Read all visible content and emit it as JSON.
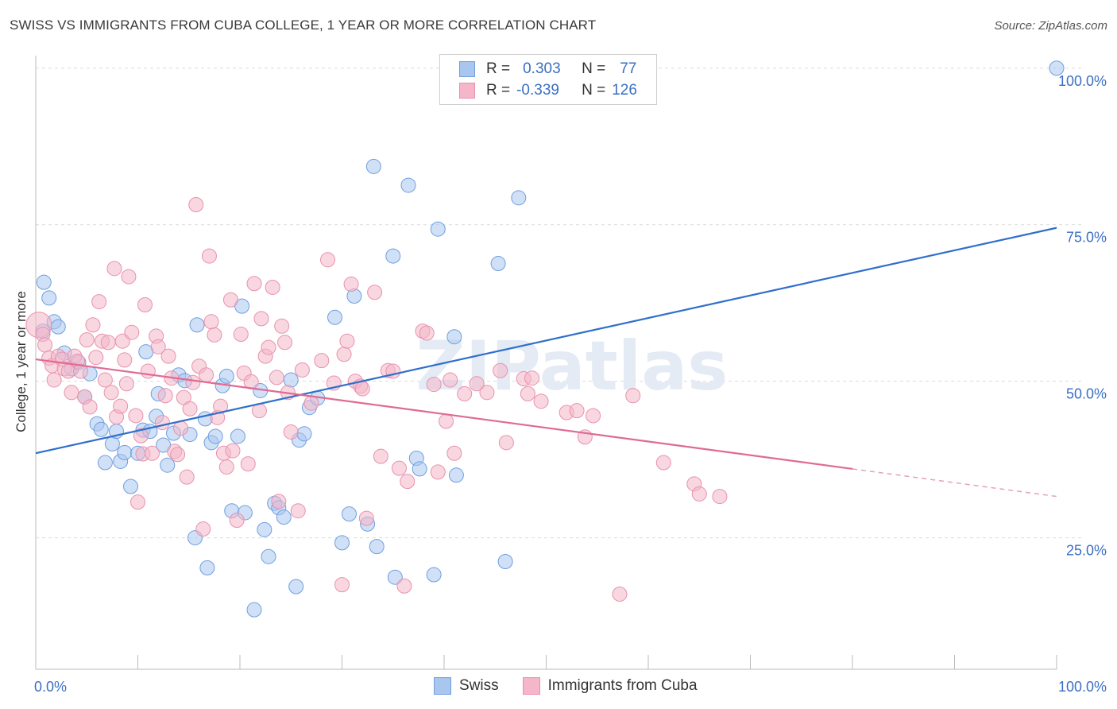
{
  "title": "SWISS VS IMMIGRANTS FROM CUBA COLLEGE, 1 YEAR OR MORE CORRELATION CHART",
  "source": "Source: ZipAtlas.com",
  "watermark": "ZIPatlas",
  "legend_top": {
    "rows": [
      {
        "r_label": "R =",
        "r_value": "0.303",
        "n_label": "N =",
        "n_value": "77",
        "color": "#a9c6ee"
      },
      {
        "r_label": "R =",
        "r_value": "-0.339",
        "n_label": "N =",
        "n_value": "126",
        "color": "#f4b6c8"
      }
    ]
  },
  "chart_data": {
    "type": "scatter",
    "title": "SWISS VS IMMIGRANTS FROM CUBA COLLEGE, 1 YEAR OR MORE CORRELATION CHART",
    "xlabel": "",
    "ylabel": "College, 1 year or more",
    "xlim": [
      0,
      100
    ],
    "ylim": [
      4,
      102
    ],
    "x_tick_labels": {
      "left": "0.0%",
      "right": "100.0%"
    },
    "y_ticks": [
      25,
      50,
      75,
      100
    ],
    "y_tick_labels": [
      "25.0%",
      "50.0%",
      "75.0%",
      "100.0%"
    ],
    "grid": true,
    "legend_position": "bottom-center",
    "series": [
      {
        "name": "Swiss",
        "color": "#a9c6ee",
        "stroke": "#6f9fe0",
        "trend": {
          "x": [
            0,
            100
          ],
          "y": [
            38.5,
            74.5
          ],
          "color": "#2f6fcc"
        },
        "points": [
          [
            0.7,
            58
          ],
          [
            0.8,
            65.8
          ],
          [
            1.3,
            63.3
          ],
          [
            1.8,
            59.5
          ],
          [
            2.2,
            58.7
          ],
          [
            2.8,
            54.5
          ],
          [
            3.5,
            52
          ],
          [
            4.2,
            53
          ],
          [
            4.8,
            47.5
          ],
          [
            5.3,
            51.2
          ],
          [
            6,
            43.2
          ],
          [
            6.4,
            42.3
          ],
          [
            6.8,
            37
          ],
          [
            7.5,
            40
          ],
          [
            7.9,
            42
          ],
          [
            8.3,
            37.2
          ],
          [
            8.7,
            38.6
          ],
          [
            9.3,
            33.2
          ],
          [
            10,
            38.5
          ],
          [
            10.5,
            42.2
          ],
          [
            10.8,
            54.7
          ],
          [
            11.2,
            42
          ],
          [
            11.8,
            44.4
          ],
          [
            12,
            48
          ],
          [
            12.5,
            39.8
          ],
          [
            12.9,
            36.6
          ],
          [
            13.5,
            41.7
          ],
          [
            14,
            51
          ],
          [
            14.6,
            50.1
          ],
          [
            15.1,
            41.5
          ],
          [
            15.6,
            25
          ],
          [
            15.8,
            59
          ],
          [
            16.6,
            44
          ],
          [
            16.8,
            20.2
          ],
          [
            17.2,
            40.2
          ],
          [
            17.6,
            41.2
          ],
          [
            18.3,
            49.3
          ],
          [
            18.7,
            50.8
          ],
          [
            19.2,
            29.3
          ],
          [
            19.8,
            41.2
          ],
          [
            20.2,
            62
          ],
          [
            20.5,
            29
          ],
          [
            21.4,
            13.5
          ],
          [
            22,
            48.5
          ],
          [
            22.4,
            26.3
          ],
          [
            22.8,
            22
          ],
          [
            23.4,
            30.5
          ],
          [
            23.8,
            29.8
          ],
          [
            24.3,
            28.3
          ],
          [
            25,
            50.2
          ],
          [
            25.5,
            17.2
          ],
          [
            25.8,
            40.6
          ],
          [
            26.3,
            41.6
          ],
          [
            26.8,
            45.8
          ],
          [
            27.6,
            47.3
          ],
          [
            29.3,
            60.2
          ],
          [
            30,
            24.2
          ],
          [
            30.7,
            28.8
          ],
          [
            31.2,
            63.6
          ],
          [
            32.5,
            27.2
          ],
          [
            33.1,
            84.3
          ],
          [
            33.4,
            23.6
          ],
          [
            35,
            70
          ],
          [
            35.2,
            18.7
          ],
          [
            36.5,
            81.3
          ],
          [
            37.3,
            37.7
          ],
          [
            37.6,
            36
          ],
          [
            39,
            19.1
          ],
          [
            39.4,
            74.3
          ],
          [
            41,
            57.1
          ],
          [
            41.2,
            35
          ],
          [
            45.3,
            68.8
          ],
          [
            46,
            21.2
          ],
          [
            47.3,
            79.3
          ],
          [
            100,
            100
          ]
        ]
      },
      {
        "name": "Immigrants from Cuba",
        "color": "#f4b6c8",
        "stroke": "#e891ad",
        "trend": {
          "x": [
            0,
            80
          ],
          "y": [
            53.5,
            36
          ],
          "color": "#e06a94"
        },
        "trend_dashed": {
          "x": [
            80,
            100
          ],
          "y": [
            36,
            31.6
          ],
          "color": "#e6a0b8"
        },
        "points": [
          [
            0.3,
            59
          ],
          [
            0.7,
            57.5
          ],
          [
            0.9,
            55.8
          ],
          [
            1.3,
            53.7
          ],
          [
            1.6,
            52.5
          ],
          [
            1.8,
            50.2
          ],
          [
            2.2,
            54
          ],
          [
            2.6,
            53.5
          ],
          [
            2.8,
            52
          ],
          [
            3.2,
            51.6
          ],
          [
            3.5,
            48.2
          ],
          [
            3.8,
            54
          ],
          [
            4.1,
            53.2
          ],
          [
            4.4,
            51.6
          ],
          [
            4.8,
            47.5
          ],
          [
            5,
            56.6
          ],
          [
            5.3,
            45.9
          ],
          [
            5.6,
            59
          ],
          [
            5.9,
            53.8
          ],
          [
            6.2,
            62.7
          ],
          [
            6.5,
            56.4
          ],
          [
            6.8,
            50.2
          ],
          [
            7.1,
            56.2
          ],
          [
            7.4,
            48.2
          ],
          [
            7.7,
            68
          ],
          [
            7.9,
            44.3
          ],
          [
            8.3,
            46
          ],
          [
            8.5,
            56.4
          ],
          [
            8.7,
            53.4
          ],
          [
            8.9,
            49.6
          ],
          [
            9.1,
            66.7
          ],
          [
            9.4,
            57.8
          ],
          [
            9.8,
            44.5
          ],
          [
            10,
            30.7
          ],
          [
            10.3,
            41.3
          ],
          [
            10.5,
            38.4
          ],
          [
            10.7,
            62.2
          ],
          [
            11,
            51.6
          ],
          [
            11.4,
            38.5
          ],
          [
            11.8,
            57.2
          ],
          [
            12,
            55.5
          ],
          [
            12.4,
            43.4
          ],
          [
            12.7,
            47.7
          ],
          [
            13,
            54
          ],
          [
            13.3,
            50.5
          ],
          [
            13.6,
            38.8
          ],
          [
            13.9,
            38.3
          ],
          [
            14.2,
            42.5
          ],
          [
            14.5,
            47.4
          ],
          [
            14.8,
            34.7
          ],
          [
            15.1,
            45.6
          ],
          [
            15.4,
            49.8
          ],
          [
            15.7,
            78.2
          ],
          [
            16,
            52.4
          ],
          [
            16.4,
            26.4
          ],
          [
            16.7,
            51
          ],
          [
            17,
            70
          ],
          [
            17.2,
            59.5
          ],
          [
            17.5,
            57.4
          ],
          [
            17.8,
            44.2
          ],
          [
            18.1,
            46
          ],
          [
            18.4,
            38.5
          ],
          [
            18.7,
            36.3
          ],
          [
            19.1,
            63
          ],
          [
            19.3,
            38.9
          ],
          [
            19.7,
            27.8
          ],
          [
            20.1,
            57.5
          ],
          [
            20.4,
            51.3
          ],
          [
            20.8,
            36.8
          ],
          [
            21.1,
            49.9
          ],
          [
            21.4,
            65.6
          ],
          [
            21.9,
            45.3
          ],
          [
            22.1,
            60
          ],
          [
            22.5,
            54
          ],
          [
            22.8,
            55.4
          ],
          [
            23.2,
            65
          ],
          [
            23.6,
            50.6
          ],
          [
            23.8,
            30.8
          ],
          [
            24.1,
            58.8
          ],
          [
            24.4,
            56.2
          ],
          [
            24.7,
            48.2
          ],
          [
            25,
            41.9
          ],
          [
            25.7,
            29.3
          ],
          [
            26.1,
            51.8
          ],
          [
            27,
            46.5
          ],
          [
            28,
            53.3
          ],
          [
            28.6,
            69.4
          ],
          [
            29.2,
            49.7
          ],
          [
            30,
            17.5
          ],
          [
            30.2,
            54.3
          ],
          [
            30.5,
            56.4
          ],
          [
            30.9,
            65.5
          ],
          [
            31.3,
            50
          ],
          [
            31.8,
            49.2
          ],
          [
            32,
            48.8
          ],
          [
            32.4,
            28.1
          ],
          [
            33.2,
            64.2
          ],
          [
            33.8,
            38
          ],
          [
            34.5,
            51.7
          ],
          [
            35,
            51.6
          ],
          [
            35.6,
            36.1
          ],
          [
            36.1,
            17.3
          ],
          [
            36.4,
            34
          ],
          [
            37.9,
            58
          ],
          [
            38.3,
            57.7
          ],
          [
            39,
            49.5
          ],
          [
            39.4,
            35.5
          ],
          [
            40.2,
            43.6
          ],
          [
            40.6,
            50.2
          ],
          [
            41,
            38.5
          ],
          [
            42,
            48
          ],
          [
            43.2,
            49.6
          ],
          [
            44.2,
            48.2
          ],
          [
            45.5,
            51.7
          ],
          [
            46.1,
            40.2
          ],
          [
            47.8,
            50.4
          ],
          [
            48.2,
            48
          ],
          [
            48.6,
            50.5
          ],
          [
            49.5,
            46.8
          ],
          [
            52,
            45
          ],
          [
            53,
            45.3
          ],
          [
            53.8,
            41.1
          ],
          [
            54.6,
            44.5
          ],
          [
            57.2,
            16
          ],
          [
            58.5,
            47.7
          ],
          [
            61.5,
            37
          ],
          [
            64.5,
            33.6
          ],
          [
            65,
            32
          ],
          [
            67,
            31.6
          ]
        ]
      }
    ]
  },
  "bottom_legend": {
    "items": [
      {
        "label": "Swiss",
        "color": "#a9c6ee",
        "stroke": "#6f9fe0"
      },
      {
        "label": "Immigrants from Cuba",
        "color": "#f4b6c8",
        "stroke": "#e891ad"
      }
    ]
  }
}
